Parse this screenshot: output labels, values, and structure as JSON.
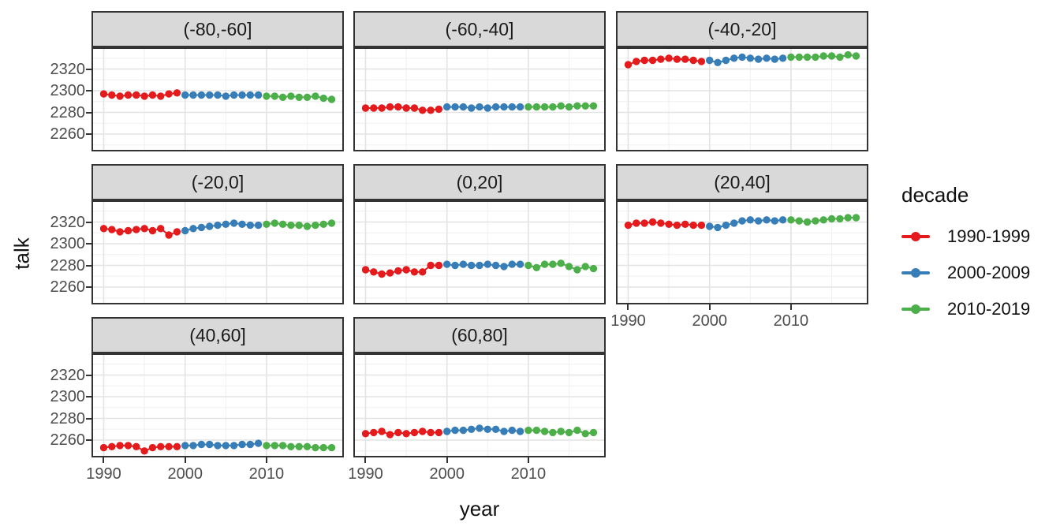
{
  "chart_data": {
    "type": "scatter",
    "xlabel": "year",
    "ylabel": "talk",
    "x_ticks": [
      "1990",
      "2000",
      "2010"
    ],
    "x_tick_values": [
      1990,
      2000,
      2010
    ],
    "x_minor_values": [
      1995,
      2005,
      2015
    ],
    "y_ticks": [
      "2320",
      "2300",
      "2280",
      "2260"
    ],
    "y_tick_values": [
      2320,
      2300,
      2280,
      2260
    ],
    "y_minor_values": [
      2330,
      2310,
      2290,
      2270,
      2250
    ],
    "x_domain": [
      1988.5,
      2019.5
    ],
    "y_domain": [
      2244,
      2340
    ],
    "grid": true,
    "legend_position": "right",
    "years": [
      1990,
      1991,
      1992,
      1993,
      1994,
      1995,
      1996,
      1997,
      1998,
      1999,
      2000,
      2001,
      2002,
      2003,
      2004,
      2005,
      2006,
      2007,
      2008,
      2009,
      2010,
      2011,
      2012,
      2013,
      2014,
      2015,
      2016,
      2017,
      2018
    ],
    "facets": [
      {
        "label": "(-80,-60]",
        "values": [
          2297,
          2296,
          2295,
          2296,
          2296,
          2295,
          2296,
          2295,
          2297,
          2298,
          2296,
          2296,
          2296,
          2296,
          2296,
          2295,
          2296,
          2296,
          2296,
          2296,
          2295,
          2295,
          2294,
          2295,
          2294,
          2294,
          2295,
          2293,
          2292
        ]
      },
      {
        "label": "(-60,-40]",
        "values": [
          2284,
          2284,
          2284,
          2285,
          2285,
          2284,
          2284,
          2282,
          2282,
          2283,
          2285,
          2285,
          2285,
          2284,
          2285,
          2284,
          2285,
          2285,
          2285,
          2285,
          2285,
          2285,
          2285,
          2285,
          2286,
          2285,
          2286,
          2286,
          2286
        ]
      },
      {
        "label": "(-40,-20]",
        "values": [
          2324,
          2327,
          2328,
          2328,
          2329,
          2330,
          2329,
          2329,
          2328,
          2327,
          2328,
          2326,
          2328,
          2330,
          2331,
          2330,
          2329,
          2330,
          2329,
          2330,
          2331,
          2331,
          2331,
          2331,
          2332,
          2332,
          2331,
          2333,
          2332
        ]
      },
      {
        "label": "(-20,0]",
        "values": [
          2314,
          2313,
          2311,
          2312,
          2313,
          2314,
          2312,
          2314,
          2308,
          2311,
          2312,
          2314,
          2315,
          2316,
          2317,
          2318,
          2319,
          2318,
          2317,
          2317,
          2318,
          2319,
          2318,
          2317,
          2317,
          2316,
          2317,
          2318,
          2319
        ]
      },
      {
        "label": "(0,20]",
        "values": [
          2276,
          2274,
          2272,
          2273,
          2275,
          2276,
          2274,
          2274,
          2280,
          2280,
          2281,
          2280,
          2281,
          2280,
          2280,
          2281,
          2280,
          2279,
          2281,
          2281,
          2280,
          2278,
          2281,
          2281,
          2282,
          2279,
          2276,
          2279,
          2277
        ]
      },
      {
        "label": "(20,40]",
        "values": [
          2317,
          2319,
          2319,
          2320,
          2319,
          2318,
          2317,
          2318,
          2317,
          2317,
          2316,
          2315,
          2317,
          2319,
          2321,
          2322,
          2321,
          2322,
          2321,
          2322,
          2322,
          2321,
          2320,
          2321,
          2322,
          2323,
          2323,
          2324,
          2324
        ]
      },
      {
        "label": "(40,60]",
        "values": [
          2253,
          2254,
          2255,
          2255,
          2254,
          2250,
          2253,
          2254,
          2254,
          2254,
          2255,
          2255,
          2256,
          2256,
          2255,
          2255,
          2255,
          2256,
          2256,
          2257,
          2255,
          2255,
          2255,
          2254,
          2254,
          2254,
          2253,
          2253,
          2253
        ]
      },
      {
        "label": "(60,80]",
        "values": [
          2266,
          2267,
          2268,
          2265,
          2267,
          2266,
          2267,
          2268,
          2267,
          2267,
          2268,
          2269,
          2269,
          2270,
          2271,
          2270,
          2270,
          2268,
          2269,
          2268,
          2269,
          2269,
          2268,
          2267,
          2268,
          2267,
          2269,
          2266,
          2267
        ]
      }
    ],
    "colors": {
      "major_grid": "#e3e3e3",
      "minor_grid": "#f2f2f2",
      "panel_border": "#333333",
      "strip_fill": "#d9d9d9",
      "tick_text": "#4d4d4d"
    }
  },
  "legend": {
    "title": "decade",
    "items": [
      {
        "label": "1990-1999",
        "color": "#e41a1c",
        "from": 1990,
        "to": 1999
      },
      {
        "label": "2000-2009",
        "color": "#377eb8",
        "from": 2000,
        "to": 2009
      },
      {
        "label": "2010-2019",
        "color": "#4daf4a",
        "from": 2010,
        "to": 2019
      }
    ]
  }
}
